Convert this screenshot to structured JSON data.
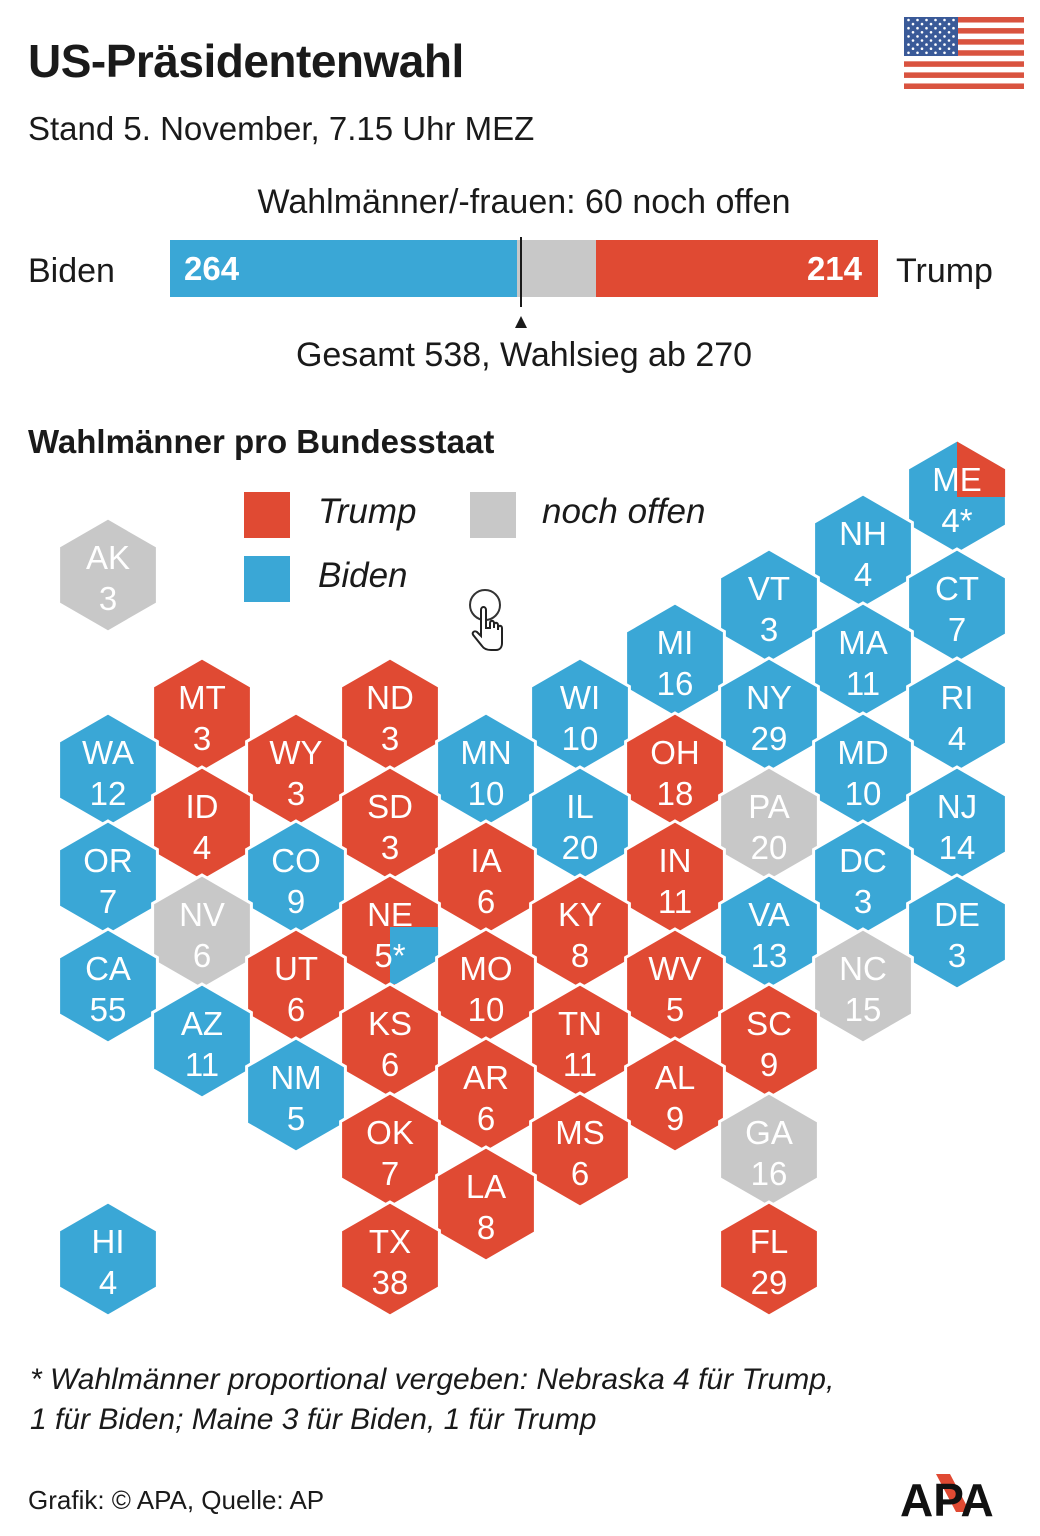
{
  "header": {
    "title": "US-Präsidentenwahl",
    "subtitle": "Stand 5. November, 7.15 Uhr MEZ",
    "flag_icon": "us-flag-icon"
  },
  "tally": {
    "open_label": "Wahlmänner/-frauen: 60 noch offen",
    "left_candidate": "Biden",
    "right_candidate": "Trump",
    "left_value": "264",
    "right_value": "214",
    "open_value": 60,
    "total": 538,
    "caption": "Gesamt 538, Wahlsieg ab 270"
  },
  "colors": {
    "trump": "#e04a33",
    "biden": "#3aa7d6",
    "open": "#c8c8c8"
  },
  "map": {
    "title": "Wahlmänner pro Bundesstaat",
    "legend": {
      "trump": "Trump",
      "biden": "Biden",
      "open": "noch offen"
    },
    "states": [
      {
        "code": "AK",
        "ev": "3",
        "party": "open"
      },
      {
        "code": "ME",
        "ev": "4*",
        "party": "biden",
        "split": "trump"
      },
      {
        "code": "NH",
        "ev": "4",
        "party": "biden"
      },
      {
        "code": "VT",
        "ev": "3",
        "party": "biden"
      },
      {
        "code": "CT",
        "ev": "7",
        "party": "biden"
      },
      {
        "code": "MI",
        "ev": "16",
        "party": "biden"
      },
      {
        "code": "MA",
        "ev": "11",
        "party": "biden"
      },
      {
        "code": "MT",
        "ev": "3",
        "party": "trump"
      },
      {
        "code": "ND",
        "ev": "3",
        "party": "trump"
      },
      {
        "code": "WI",
        "ev": "10",
        "party": "biden"
      },
      {
        "code": "NY",
        "ev": "29",
        "party": "biden"
      },
      {
        "code": "RI",
        "ev": "4",
        "party": "biden"
      },
      {
        "code": "WA",
        "ev": "12",
        "party": "biden"
      },
      {
        "code": "WY",
        "ev": "3",
        "party": "trump"
      },
      {
        "code": "MN",
        "ev": "10",
        "party": "biden"
      },
      {
        "code": "OH",
        "ev": "18",
        "party": "trump"
      },
      {
        "code": "MD",
        "ev": "10",
        "party": "biden"
      },
      {
        "code": "ID",
        "ev": "4",
        "party": "trump"
      },
      {
        "code": "SD",
        "ev": "3",
        "party": "trump"
      },
      {
        "code": "IL",
        "ev": "20",
        "party": "biden"
      },
      {
        "code": "PA",
        "ev": "20",
        "party": "open"
      },
      {
        "code": "NJ",
        "ev": "14",
        "party": "biden"
      },
      {
        "code": "OR",
        "ev": "7",
        "party": "biden"
      },
      {
        "code": "CO",
        "ev": "9",
        "party": "biden"
      },
      {
        "code": "IA",
        "ev": "6",
        "party": "trump"
      },
      {
        "code": "IN",
        "ev": "11",
        "party": "trump"
      },
      {
        "code": "DC",
        "ev": "3",
        "party": "biden"
      },
      {
        "code": "NV",
        "ev": "6",
        "party": "open"
      },
      {
        "code": "NE",
        "ev": "5*",
        "party": "trump",
        "split": "biden"
      },
      {
        "code": "KY",
        "ev": "8",
        "party": "trump"
      },
      {
        "code": "VA",
        "ev": "13",
        "party": "biden"
      },
      {
        "code": "DE",
        "ev": "3",
        "party": "biden"
      },
      {
        "code": "CA",
        "ev": "55",
        "party": "biden"
      },
      {
        "code": "UT",
        "ev": "6",
        "party": "trump"
      },
      {
        "code": "MO",
        "ev": "10",
        "party": "trump"
      },
      {
        "code": "WV",
        "ev": "5",
        "party": "trump"
      },
      {
        "code": "NC",
        "ev": "15",
        "party": "open"
      },
      {
        "code": "AZ",
        "ev": "11",
        "party": "biden"
      },
      {
        "code": "KS",
        "ev": "6",
        "party": "trump"
      },
      {
        "code": "TN",
        "ev": "11",
        "party": "trump"
      },
      {
        "code": "SC",
        "ev": "9",
        "party": "trump"
      },
      {
        "code": "NM",
        "ev": "5",
        "party": "biden"
      },
      {
        "code": "AR",
        "ev": "6",
        "party": "trump"
      },
      {
        "code": "AL",
        "ev": "9",
        "party": "trump"
      },
      {
        "code": "OK",
        "ev": "7",
        "party": "trump"
      },
      {
        "code": "MS",
        "ev": "6",
        "party": "trump"
      },
      {
        "code": "GA",
        "ev": "16",
        "party": "open"
      },
      {
        "code": "LA",
        "ev": "8",
        "party": "trump"
      },
      {
        "code": "HI",
        "ev": "4",
        "party": "biden"
      },
      {
        "code": "TX",
        "ev": "38",
        "party": "trump"
      },
      {
        "code": "FL",
        "ev": "29",
        "party": "trump"
      }
    ]
  },
  "footnote": {
    "line1": "* Wahlmänner proportional vergeben: Nebraska 4 für Trump,",
    "line2": "1 für Biden; Maine 3 für Biden, 1 für Trump"
  },
  "footer": {
    "credit": "Grafik: © APA, Quelle: AP",
    "logo": "APA"
  }
}
